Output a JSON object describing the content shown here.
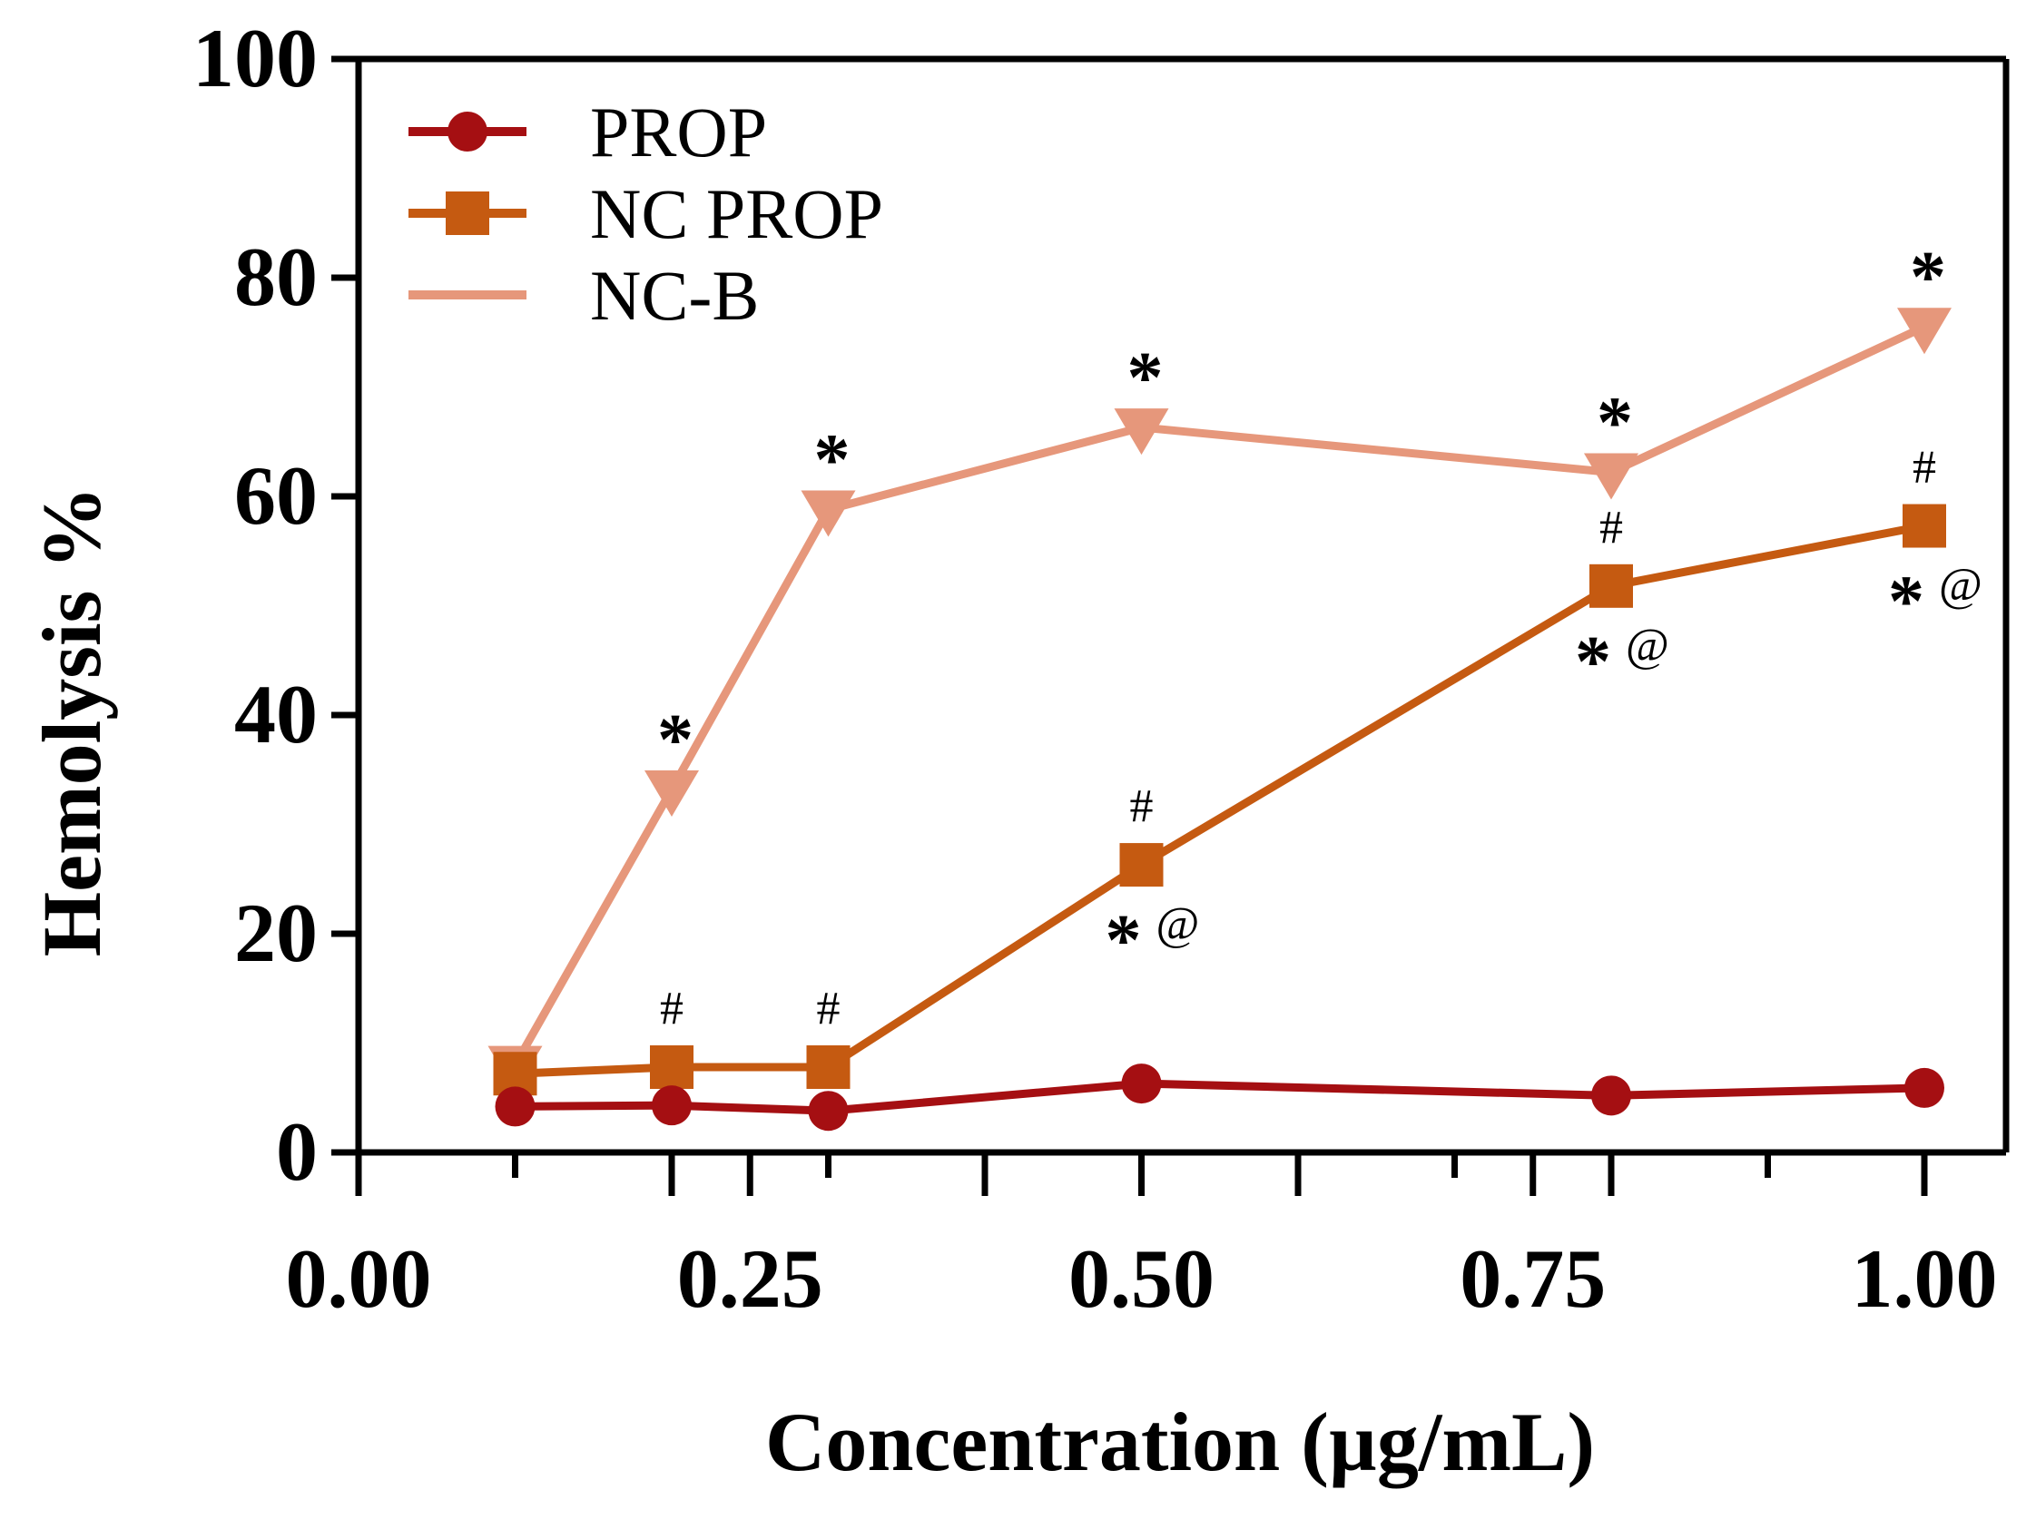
{
  "chart_data": {
    "type": "line",
    "xlabel": "Concentration (µg/mL)",
    "ylabel": "Hemolysis %",
    "xlim": [
      0.0,
      1.05
    ],
    "ylim": [
      0,
      100
    ],
    "x_ticks": [
      "0.00",
      "0.25",
      "0.50",
      "0.75",
      "1.00"
    ],
    "y_ticks": [
      "0",
      "20",
      "40",
      "60",
      "80",
      "100"
    ],
    "x": [
      0.1,
      0.2,
      0.3,
      0.5,
      0.8,
      1.0
    ],
    "series": [
      {
        "name": "PROP",
        "marker": "circle",
        "color": "#a50f12",
        "values": [
          4.2,
          4.3,
          3.8,
          6.3,
          5.2,
          5.9
        ]
      },
      {
        "name": "NC PROP",
        "marker": "square",
        "color": "#c55a11",
        "values": [
          7.2,
          7.8,
          7.8,
          26.3,
          51.8,
          57.3
        ]
      },
      {
        "name": "NC-B",
        "marker": "triangle-down",
        "color": "#e6977b",
        "values": [
          8.0,
          33.2,
          58.8,
          66.3,
          62.2,
          75.5
        ]
      }
    ],
    "legend_position": "top-left",
    "annotations": [
      {
        "series": "NC-B",
        "x": 0.2,
        "above": "*"
      },
      {
        "series": "NC-B",
        "x": 0.3,
        "above": "*"
      },
      {
        "series": "NC-B",
        "x": 0.5,
        "above": "*"
      },
      {
        "series": "NC-B",
        "x": 0.8,
        "above": "*"
      },
      {
        "series": "NC-B",
        "x": 1.0,
        "above": "*"
      },
      {
        "series": "NC PROP",
        "x": 0.2,
        "above": "#"
      },
      {
        "series": "NC PROP",
        "x": 0.3,
        "above": "#"
      },
      {
        "series": "NC PROP",
        "x": 0.5,
        "above": "#",
        "below_star": "*",
        "below_at": "@"
      },
      {
        "series": "NC PROP",
        "x": 0.8,
        "above": "#",
        "below_star": "*",
        "below_at": "@"
      },
      {
        "series": "NC PROP",
        "x": 1.0,
        "above": "#",
        "below_star": "*",
        "below_at": "@"
      }
    ]
  }
}
